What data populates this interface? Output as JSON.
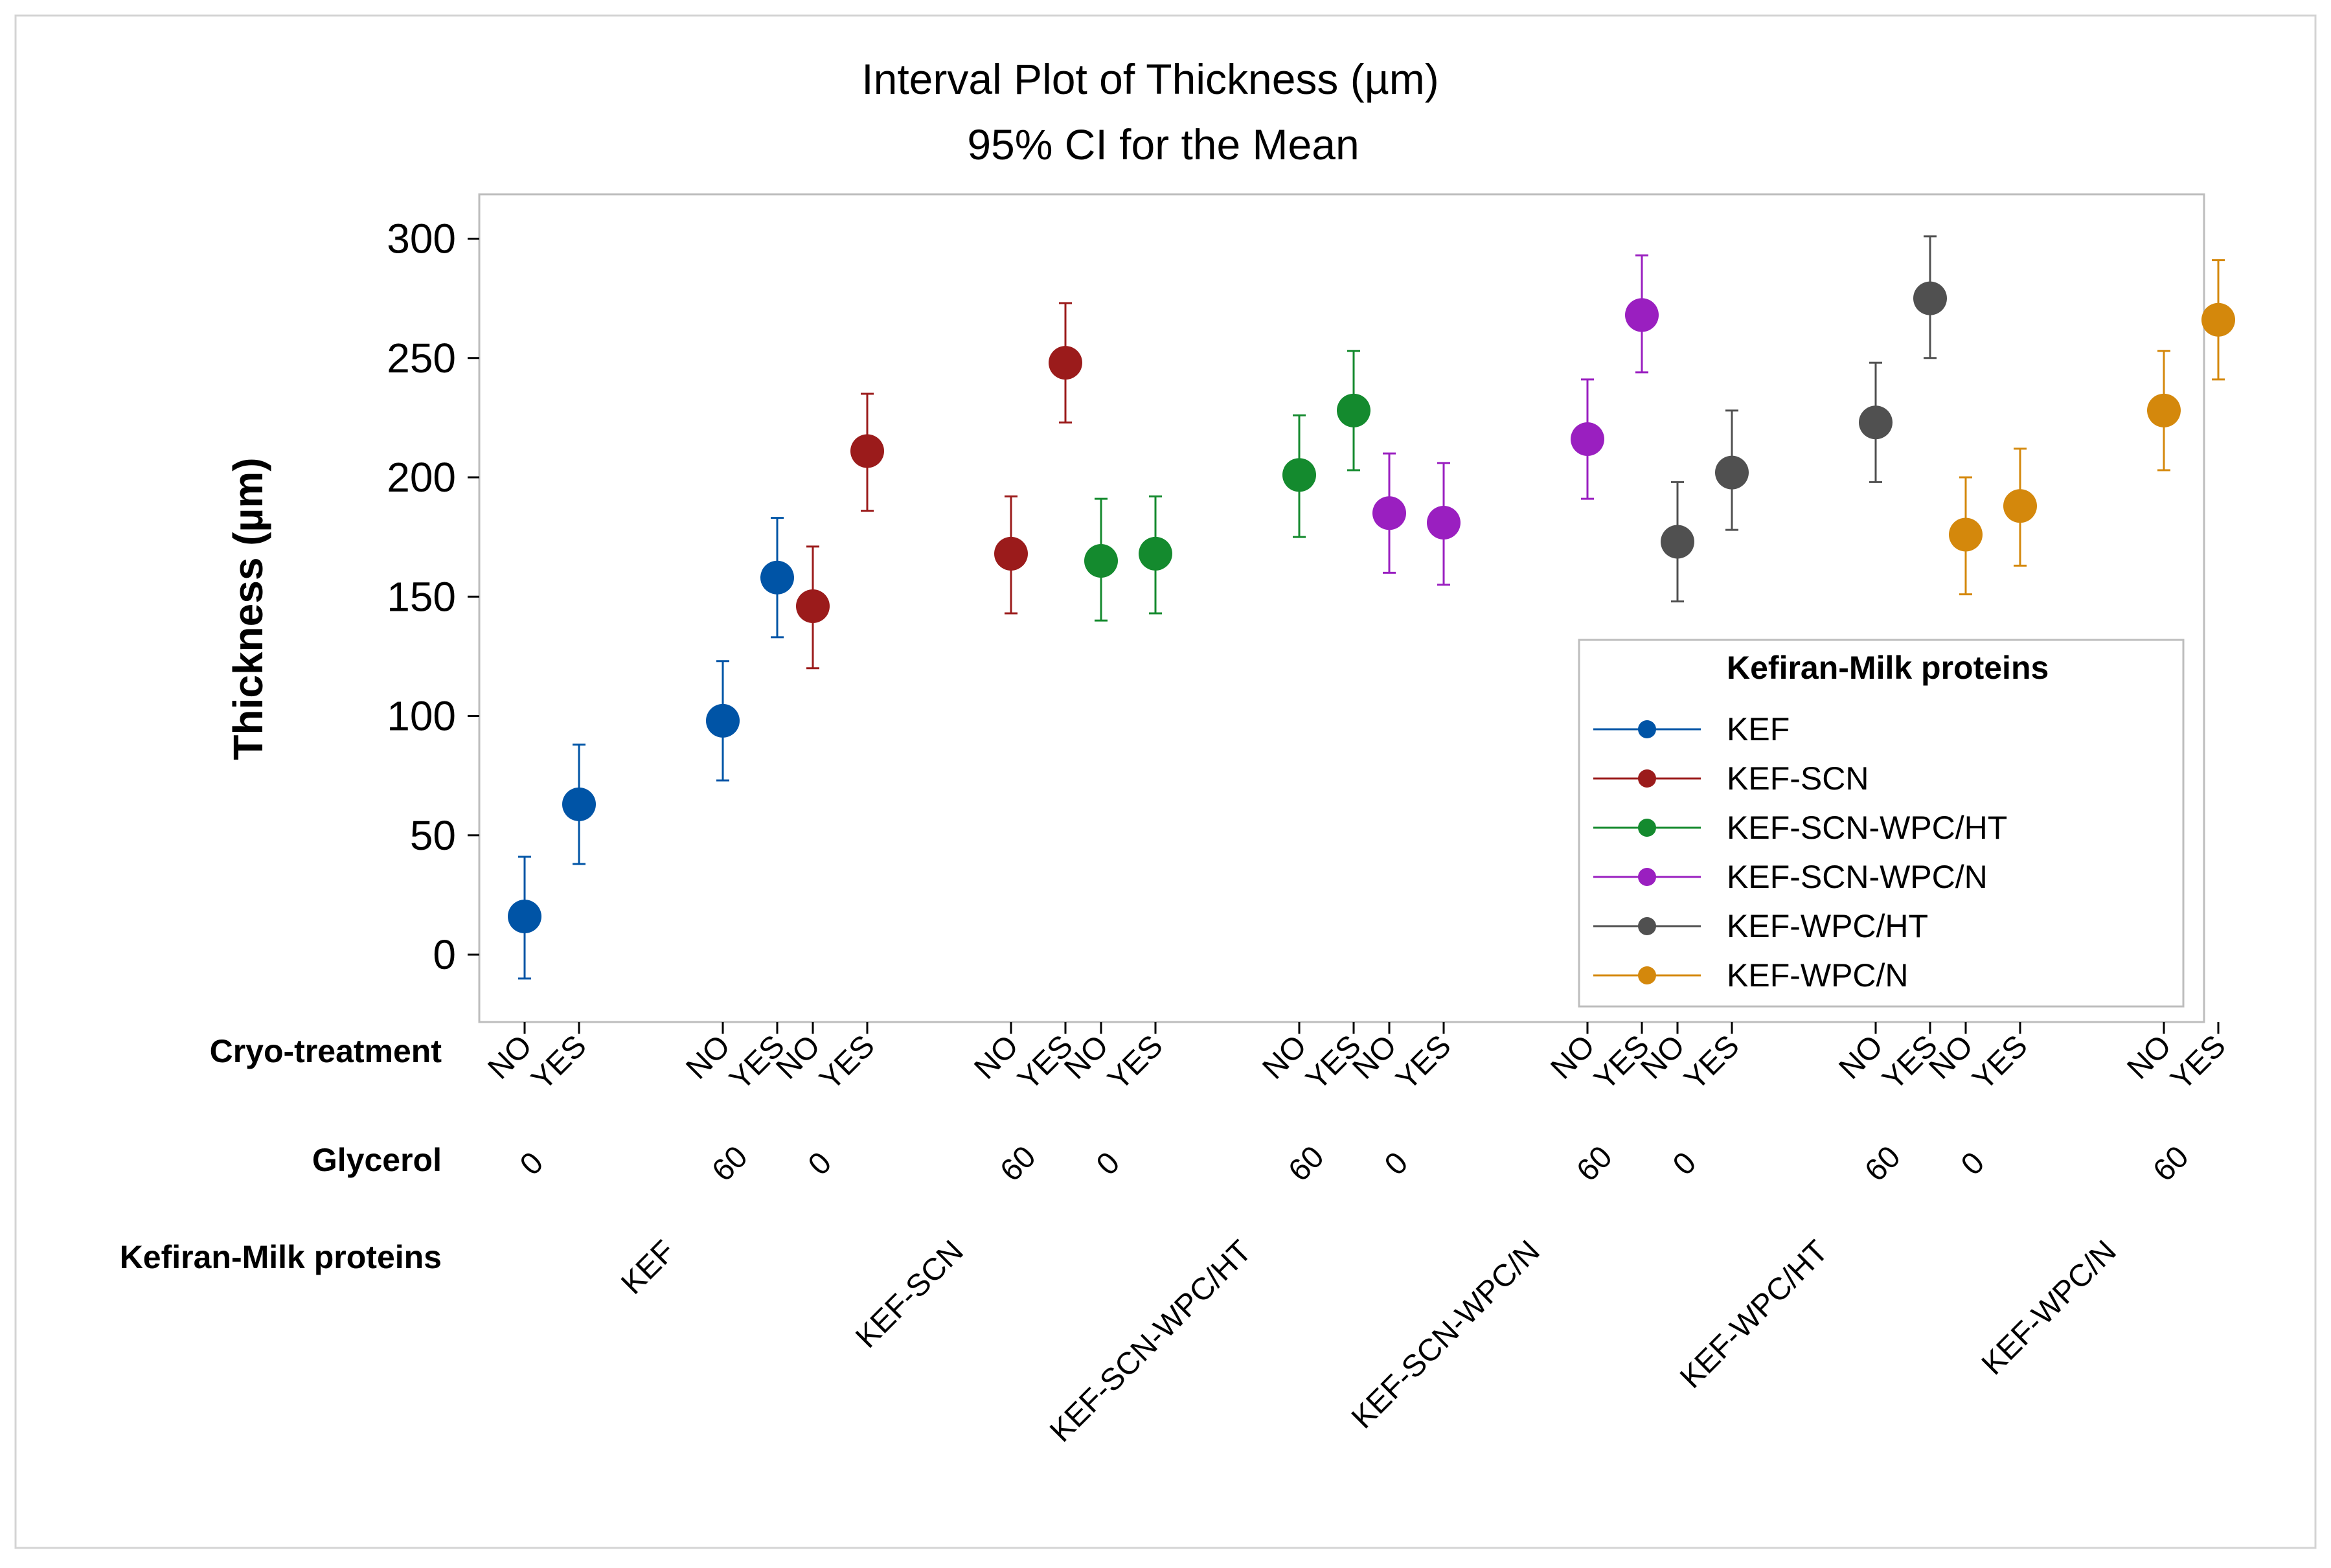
{
  "chart_data": {
    "type": "interval",
    "title": "Interval Plot of Thickness (µm)",
    "subtitle": "95% CI for the Mean",
    "ylabel": "Thickness (µm)",
    "ylim": [
      -30,
      305
    ],
    "yticks": [
      0,
      50,
      100,
      150,
      200,
      250,
      300
    ],
    "row_labels": {
      "cryo": "Cryo-treatment",
      "glycerol": "Glycerol",
      "group": "Kefiran-Milk proteins"
    },
    "legend": {
      "title": "Kefiran-Milk proteins",
      "position": "right-lower"
    },
    "series": [
      {
        "name": "KEF",
        "color": "#0054A6",
        "points": [
          {
            "glycerol": "0",
            "cryo": "NO",
            "mean": 16,
            "lower": -10,
            "upper": 41
          },
          {
            "glycerol": "0",
            "cryo": "YES",
            "mean": 63,
            "lower": 38,
            "upper": 88
          },
          {
            "glycerol": "60",
            "cryo": "NO",
            "mean": 98,
            "lower": 73,
            "upper": 123
          },
          {
            "glycerol": "60",
            "cryo": "YES",
            "mean": 158,
            "lower": 133,
            "upper": 183
          }
        ]
      },
      {
        "name": "KEF-SCN",
        "color": "#9B1B1B",
        "points": [
          {
            "glycerol": "0",
            "cryo": "NO",
            "mean": 146,
            "lower": 120,
            "upper": 171
          },
          {
            "glycerol": "0",
            "cryo": "YES",
            "mean": 211,
            "lower": 186,
            "upper": 235
          },
          {
            "glycerol": "60",
            "cryo": "NO",
            "mean": 168,
            "lower": 143,
            "upper": 192
          },
          {
            "glycerol": "60",
            "cryo": "YES",
            "mean": 248,
            "lower": 223,
            "upper": 273
          }
        ]
      },
      {
        "name": "KEF-SCN-WPC/HT",
        "color": "#148A2E",
        "points": [
          {
            "glycerol": "0",
            "cryo": "NO",
            "mean": 165,
            "lower": 140,
            "upper": 191
          },
          {
            "glycerol": "0",
            "cryo": "YES",
            "mean": 168,
            "lower": 143,
            "upper": 192
          },
          {
            "glycerol": "60",
            "cryo": "NO",
            "mean": 201,
            "lower": 175,
            "upper": 226
          },
          {
            "glycerol": "60",
            "cryo": "YES",
            "mean": 228,
            "lower": 203,
            "upper": 253
          }
        ]
      },
      {
        "name": "KEF-SCN-WPC/N",
        "color": "#9A1FC0",
        "points": [
          {
            "glycerol": "0",
            "cryo": "NO",
            "mean": 185,
            "lower": 160,
            "upper": 210
          },
          {
            "glycerol": "0",
            "cryo": "YES",
            "mean": 181,
            "lower": 155,
            "upper": 206
          },
          {
            "glycerol": "60",
            "cryo": "NO",
            "mean": 216,
            "lower": 191,
            "upper": 241
          },
          {
            "glycerol": "60",
            "cryo": "YES",
            "mean": 268,
            "lower": 244,
            "upper": 293
          }
        ]
      },
      {
        "name": "KEF-WPC/HT",
        "color": "#505050",
        "points": [
          {
            "glycerol": "0",
            "cryo": "NO",
            "mean": 173,
            "lower": 148,
            "upper": 198
          },
          {
            "glycerol": "0",
            "cryo": "YES",
            "mean": 202,
            "lower": 178,
            "upper": 228
          },
          {
            "glycerol": "60",
            "cryo": "NO",
            "mean": 223,
            "lower": 198,
            "upper": 248
          },
          {
            "glycerol": "60",
            "cryo": "YES",
            "mean": 275,
            "lower": 250,
            "upper": 301
          }
        ]
      },
      {
        "name": "KEF-WPC/N",
        "color": "#D4880C",
        "points": [
          {
            "glycerol": "0",
            "cryo": "NO",
            "mean": 176,
            "lower": 151,
            "upper": 200
          },
          {
            "glycerol": "0",
            "cryo": "YES",
            "mean": 188,
            "lower": 163,
            "upper": 212
          },
          {
            "glycerol": "60",
            "cryo": "NO",
            "mean": 228,
            "lower": 203,
            "upper": 253
          },
          {
            "glycerol": "60",
            "cryo": "YES",
            "mean": 266,
            "lower": 241,
            "upper": 291
          }
        ]
      }
    ]
  }
}
